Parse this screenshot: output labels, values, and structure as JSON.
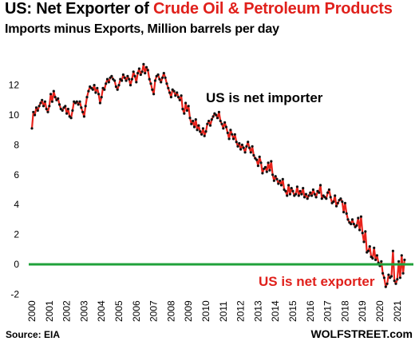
{
  "header": {
    "title_prefix": "US: Net Exporter of ",
    "title_highlight": "Crude Oil & Petroleum Products",
    "subtitle": "Imports minus Exports, Million barrels per day"
  },
  "footer": {
    "source": "Source: EIA",
    "brand": "WOLFSTREET.com"
  },
  "colors": {
    "line": "#e8231b",
    "markers": "#111111",
    "zero_line": "#1fa13a",
    "title_highlight": "#e0201b",
    "annotation_exporter": "#e0201b"
  },
  "chart_data": {
    "type": "line",
    "title": "US: Net Exporter of Crude Oil & Petroleum Products",
    "subtitle": "Imports minus Exports, Million barrels per day",
    "xlabel": "",
    "ylabel": "",
    "ylim": [
      -2,
      14
    ],
    "yticks": [
      -2,
      0,
      2,
      4,
      6,
      8,
      10,
      12
    ],
    "xticks": [
      "2000",
      "2001",
      "2002",
      "2003",
      "2004",
      "2005",
      "2006",
      "2007",
      "2008",
      "2009",
      "2010",
      "2011",
      "2012",
      "2013",
      "2014",
      "2015",
      "2016",
      "2017",
      "2018",
      "2019",
      "2020",
      "2021"
    ],
    "reference_line": {
      "y": 0,
      "color": "#1fa13a"
    },
    "grid": false,
    "annotations": [
      {
        "text": "US is net importer",
        "color": "#000000"
      },
      {
        "text": "US is net exporter",
        "color": "#e0201b"
      }
    ],
    "series": [
      {
        "frequency": "monthly",
        "start": "2000-01",
        "values": [
          9.1,
          10.2,
          10.0,
          10.5,
          10.3,
          10.6,
          10.8,
          11.0,
          10.6,
          10.9,
          10.4,
          10.2,
          10.6,
          11.4,
          10.9,
          11.6,
          11.2,
          11.0,
          11.1,
          10.7,
          10.4,
          10.3,
          10.5,
          10.6,
          10.1,
          10.4,
          9.9,
          9.8,
          10.3,
          10.9,
          10.8,
          10.9,
          10.7,
          10.9,
          10.5,
          10.2,
          9.9,
          10.6,
          11.2,
          11.6,
          11.9,
          11.8,
          11.7,
          12.0,
          11.5,
          11.8,
          11.4,
          10.8,
          11.2,
          11.8,
          11.7,
          12.1,
          12.4,
          12.2,
          12.5,
          12.6,
          12.4,
          12.3,
          11.9,
          11.7,
          12.0,
          12.4,
          12.3,
          12.7,
          12.5,
          12.3,
          12.6,
          12.4,
          12.0,
          12.4,
          12.9,
          12.6,
          12.2,
          12.8,
          13.1,
          12.7,
          12.9,
          13.4,
          12.8,
          13.2,
          13.0,
          12.4,
          12.1,
          11.7,
          11.4,
          12.3,
          12.6,
          12.7,
          12.4,
          12.2,
          12.5,
          12.8,
          12.5,
          12.1,
          11.8,
          11.5,
          11.2,
          11.7,
          11.6,
          11.3,
          11.5,
          11.2,
          11.0,
          11.3,
          10.4,
          10.1,
          10.8,
          10.3,
          10.6,
          9.8,
          9.4,
          9.6,
          9.2,
          9.7,
          9.0,
          9.3,
          8.9,
          8.7,
          9.1,
          8.6,
          8.9,
          9.4,
          9.6,
          9.3,
          9.7,
          9.9,
          10.1,
          10.0,
          9.8,
          10.2,
          9.6,
          9.4,
          9.1,
          9.5,
          9.2,
          8.8,
          8.4,
          9.0,
          8.7,
          8.4,
          8.7,
          8.2,
          7.9,
          8.1,
          7.7,
          8.0,
          7.8,
          7.5,
          7.9,
          8.2,
          7.8,
          7.5,
          7.9,
          7.3,
          7.1,
          7.0,
          6.6,
          7.2,
          6.8,
          6.1,
          6.4,
          6.5,
          6.2,
          6.8,
          6.3,
          6.9,
          6.0,
          5.6,
          5.9,
          5.7,
          5.4,
          5.6,
          5.3,
          5.7,
          5.0,
          4.9,
          4.6,
          5.3,
          4.7,
          5.1,
          4.9,
          4.6,
          4.7,
          5.2,
          4.6,
          4.9,
          4.7,
          5.1,
          4.5,
          4.7,
          4.4,
          4.6,
          4.8,
          4.6,
          5.0,
          4.7,
          4.5,
          4.9,
          4.8,
          5.3,
          4.4,
          4.6,
          4.5,
          4.4,
          4.8,
          5.0,
          4.5,
          4.1,
          4.2,
          4.6,
          3.9,
          4.1,
          4.3,
          4.4,
          4.2,
          3.5,
          4.1,
          3.4,
          3.0,
          2.8,
          2.7,
          3.0,
          2.7,
          2.5,
          2.6,
          3.1,
          2.3,
          3.2,
          2.1,
          1.5,
          2.2,
          0.8,
          0.9,
          1.2,
          0.5,
          0.4,
          1.1,
          0.3,
          0.6,
          0.1,
          -0.1,
          0.2,
          -0.6,
          -0.9,
          -1.5,
          -1.3,
          -0.7,
          -0.9,
          -0.8,
          0.9,
          -1.1,
          -1.3,
          -1.0,
          0.2,
          -0.9,
          0.6,
          -0.6,
          0.3
        ]
      }
    ]
  }
}
